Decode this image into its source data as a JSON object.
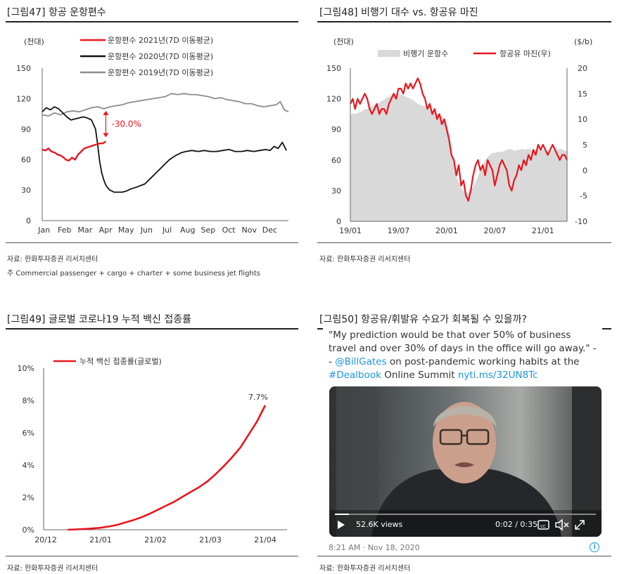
{
  "fig47": {
    "title": "[그림47]  항공  운항편수",
    "source": "자료:  한화투자증권   리서치센터",
    "note": "주 Commercial passenger + cargo + charter + some business jet flights",
    "annotation": "-30.0%"
  },
  "fig48": {
    "title": "[그림48]  비행기 대수 vs. 항공유 마진",
    "source": "자료:  한화투자증권   리서치센터"
  },
  "fig49": {
    "title": "[그림49]  글로벌 코로나19  누적 백신 접종률",
    "source": "자료:  한화투자증권   리서치센터",
    "end_label": "7.7%"
  },
  "fig50": {
    "title": "[그림50]  항공유/휘발유  수요가 회복될 수 있을까?",
    "source": "자료:  한화투자증권   리서치센터",
    "tweet_text_1": "\"My prediction would be that over 50% of business travel and over 30% of days in the office will go away.\" --",
    "tweet_handle": "@BillGates",
    "tweet_text_2": " on post-pandemic working habits at the ",
    "tweet_tag": "#Dealbook",
    "tweet_text_3": " Online Summit ",
    "tweet_url": "nyti.ms/32UN8Tc",
    "views": "52.6K views",
    "time": "0:02 / 0:35",
    "timestamp": "8:21 AM · Nov 18, 2020",
    "icons": [
      "play-icon",
      "captions-icon",
      "volume-icon",
      "fullscreen-icon",
      "info-icon"
    ]
  },
  "chart_data": [
    {
      "type": "line",
      "id": "fig47",
      "unit_label": "(천대)",
      "ylim": [
        0,
        150
      ],
      "yticks": [
        "0",
        "30",
        "60",
        "90",
        "120",
        "150"
      ],
      "categories": [
        "Jan",
        "Feb",
        "Mar",
        "Apr",
        "May",
        "Jun",
        "Jul",
        "Aug",
        "Sep",
        "Oct",
        "Nov",
        "Dec"
      ],
      "legend_position": "top",
      "series": [
        {
          "name": "운항편수 2021년(7D 이동평균)",
          "color": "#e8161e",
          "x": [
            0,
            0.15,
            0.3,
            0.45,
            0.6,
            0.75,
            0.9,
            1.05,
            1.15,
            1.3,
            1.45,
            1.6,
            1.75,
            1.9,
            2.05,
            2.2,
            2.35,
            2.5,
            2.65,
            2.8,
            2.95,
            3.1
          ],
          "y": [
            70,
            69,
            71,
            68,
            67,
            65,
            64,
            62,
            60,
            59,
            62,
            60,
            65,
            68,
            71,
            72,
            73,
            74,
            75,
            76,
            76,
            78
          ]
        },
        {
          "name": "운항편수 2020년(7D 이동평균)",
          "color": "#111111",
          "x": [
            0,
            0.2,
            0.4,
            0.6,
            0.8,
            1.0,
            1.2,
            1.4,
            1.6,
            1.8,
            2.0,
            2.2,
            2.4,
            2.6,
            2.7,
            2.8,
            2.9,
            3.0,
            3.1,
            3.2,
            3.3,
            3.5,
            3.7,
            3.9,
            4.1,
            4.3,
            4.6,
            5.0,
            5.3,
            5.6,
            5.9,
            6.2,
            6.5,
            6.8,
            7.0,
            7.3,
            7.6,
            7.9,
            8.2,
            8.5,
            8.8,
            9.1,
            9.4,
            9.7,
            10.0,
            10.3,
            10.6,
            10.9,
            11.1,
            11.3,
            11.5,
            11.7,
            11.9
          ],
          "y": [
            107,
            111,
            109,
            112,
            110,
            106,
            102,
            99,
            100,
            101,
            102,
            101,
            99,
            90,
            75,
            58,
            47,
            40,
            35,
            32,
            30,
            28,
            28,
            28,
            29,
            31,
            33,
            36,
            42,
            48,
            54,
            60,
            64,
            67,
            68,
            69,
            68,
            69,
            68,
            68,
            69,
            70,
            68,
            68,
            69,
            68,
            69,
            70,
            69,
            73,
            71,
            77,
            69
          ]
        },
        {
          "name": "운항편수 2019년(7D 이동평균)",
          "color": "#8c8c8c",
          "x": [
            0,
            0.3,
            0.6,
            0.9,
            1.2,
            1.5,
            1.8,
            2.1,
            2.4,
            2.7,
            3.0,
            3.3,
            3.6,
            3.9,
            4.2,
            4.5,
            4.8,
            5.1,
            5.4,
            5.7,
            6.0,
            6.3,
            6.6,
            6.9,
            7.2,
            7.5,
            7.8,
            8.1,
            8.4,
            8.7,
            9.0,
            9.3,
            9.6,
            9.9,
            10.2,
            10.5,
            10.8,
            11.1,
            11.4,
            11.6,
            11.8,
            12.0
          ],
          "y": [
            104,
            103,
            106,
            104,
            107,
            108,
            107,
            109,
            111,
            112,
            110,
            112,
            113,
            114,
            116,
            117,
            118,
            119,
            120,
            121,
            122,
            125,
            124,
            125,
            124,
            124,
            123,
            122,
            120,
            121,
            119,
            118,
            117,
            115,
            115,
            113,
            112,
            113,
            114,
            117,
            109,
            107
          ]
        }
      ],
      "annotations": [
        {
          "text": "-30.0%",
          "x": 3.1,
          "y_from": 108,
          "y_to": 82
        }
      ]
    },
    {
      "type": "area+line",
      "id": "fig48",
      "unit_label_left": "(천대)",
      "unit_label_right": "($/b)",
      "ylim_left": [
        0,
        150
      ],
      "ylim_right": [
        -10,
        20
      ],
      "yticks_left": [
        "0",
        "30",
        "60",
        "90",
        "120",
        "150"
      ],
      "yticks_right": [
        "-10",
        "-5",
        "0",
        "5",
        "10",
        "15",
        "20"
      ],
      "xticks": [
        "19/01",
        "19/07",
        "20/01",
        "20/07",
        "21/01"
      ],
      "legend_position": "top",
      "series": [
        {
          "name": "비행기 운항수",
          "axis": "left",
          "style": "area",
          "color": "#d9d9d9",
          "x": [
            0,
            0.3,
            0.6,
            0.9,
            1.2,
            1.5,
            1.8,
            2.1,
            2.4,
            2.7,
            3.0,
            3.3,
            3.6,
            3.9,
            4.2,
            4.5,
            4.8,
            5.1,
            5.4,
            5.7,
            6.0,
            6.3,
            6.6,
            6.9,
            7.2,
            7.5,
            7.8,
            8.1,
            8.4,
            8.7,
            9.0,
            9.3,
            9.6,
            9.9,
            10.2,
            10.5,
            10.8,
            11.1,
            11.4,
            11.7,
            12.0,
            12.3,
            12.6,
            12.9,
            13.2,
            13.5,
            13.8,
            14.1,
            14.4,
            14.7,
            15.0,
            15.3,
            15.6,
            15.9,
            16.2,
            16.5,
            16.8,
            17.1,
            17.4,
            17.7,
            18.0,
            18.3,
            18.6,
            18.9,
            19.2,
            19.5,
            19.8,
            20.2,
            20.5,
            20.8,
            21.1,
            21.4,
            21.7,
            22.0,
            22.3,
            22.6,
            22.9,
            23.2,
            23.5,
            23.8,
            24.1,
            24.4,
            24.7,
            25.0,
            25.3,
            25.6,
            25.9,
            26.2,
            26.5,
            26.8,
            27.0
          ],
          "y": [
            104,
            106,
            105,
            106,
            107,
            108,
            110,
            110,
            112,
            113,
            114,
            115,
            116,
            118,
            119,
            121,
            122,
            123,
            124,
            124,
            125,
            124,
            124,
            122,
            121,
            120,
            119,
            117,
            115,
            114,
            113,
            113,
            112,
            111,
            108,
            107,
            106,
            104,
            103,
            100,
            97,
            87,
            72,
            55,
            45,
            38,
            33,
            30,
            28,
            29,
            31,
            34,
            38,
            44,
            50,
            55,
            60,
            63,
            65,
            67,
            67,
            68,
            68,
            68,
            69,
            70,
            71,
            70,
            69,
            70,
            70,
            71,
            70,
            71,
            71,
            70,
            70,
            70,
            70,
            71,
            70,
            69,
            68,
            69,
            70,
            72,
            70,
            71,
            70,
            69,
            68
          ]
        },
        {
          "name": "항공유 마진(우)",
          "axis": "right",
          "style": "line",
          "color": "#e8161e",
          "x": [
            0,
            0.3,
            0.6,
            0.9,
            1.2,
            1.5,
            1.8,
            2.1,
            2.4,
            2.7,
            3.0,
            3.3,
            3.6,
            3.9,
            4.2,
            4.5,
            4.8,
            5.1,
            5.4,
            5.7,
            6.0,
            6.3,
            6.6,
            6.9,
            7.2,
            7.5,
            7.8,
            8.1,
            8.4,
            8.7,
            9.0,
            9.3,
            9.6,
            9.9,
            10.2,
            10.5,
            10.8,
            11.1,
            11.4,
            11.7,
            12.0,
            12.3,
            12.6,
            12.9,
            13.2,
            13.5,
            13.8,
            14.1,
            14.4,
            14.7,
            15.0,
            15.3,
            15.6,
            15.9,
            16.2,
            16.5,
            16.8,
            17.1,
            17.4,
            17.7,
            18.0,
            18.3,
            18.6,
            18.9,
            19.2,
            19.5,
            19.8,
            20.1,
            20.4,
            20.7,
            21.0,
            21.3,
            21.6,
            21.9,
            22.2,
            22.5,
            22.8,
            23.1,
            23.4,
            23.7,
            24.0,
            24.3,
            24.6,
            24.9,
            25.2,
            25.5,
            25.8,
            26.1,
            26.4,
            26.7,
            27.0
          ],
          "y": [
            13,
            14,
            12,
            14,
            13,
            14,
            15,
            14,
            12,
            11,
            12,
            13,
            11,
            12,
            12,
            11,
            13,
            14,
            15,
            14,
            16,
            16,
            15,
            17,
            16,
            17,
            16,
            17,
            18,
            17,
            15,
            14,
            12,
            13,
            11,
            12,
            10,
            11,
            9,
            10,
            8,
            6,
            3,
            2,
            -1,
            1,
            -3,
            -2,
            -5,
            -6,
            -4,
            -1,
            1,
            2,
            0,
            1,
            -1,
            2,
            1,
            0,
            -3,
            -1,
            1,
            2,
            1,
            0,
            -3,
            -4,
            -2,
            -1,
            1,
            0,
            2,
            1,
            3,
            2,
            4,
            3,
            5,
            4,
            5,
            4,
            3,
            4,
            5,
            4,
            3,
            2,
            3,
            3,
            2
          ]
        }
      ]
    },
    {
      "type": "line",
      "id": "fig49",
      "ylim": [
        0,
        10
      ],
      "yticks": [
        "0%",
        "2%",
        "4%",
        "6%",
        "8%",
        "10%"
      ],
      "xticks": [
        "20/12",
        "21/01",
        "21/02",
        "21/03",
        "21/04"
      ],
      "legend_position": "top-left",
      "series": [
        {
          "name": "누적 백신 접종률(글로벌)",
          "color": "#e8161e",
          "x": [
            0.4,
            0.55,
            0.7,
            0.85,
            1.0,
            1.15,
            1.3,
            1.45,
            1.6,
            1.75,
            1.9,
            2.05,
            2.2,
            2.35,
            2.5,
            2.65,
            2.8,
            2.95,
            3.1,
            3.25,
            3.4,
            3.55,
            3.7,
            3.85,
            4.0
          ],
          "y": [
            0.0,
            0.02,
            0.05,
            0.08,
            0.12,
            0.2,
            0.3,
            0.45,
            0.6,
            0.78,
            1.0,
            1.25,
            1.5,
            1.75,
            2.05,
            2.35,
            2.65,
            3.0,
            3.45,
            3.95,
            4.5,
            5.1,
            5.9,
            6.7,
            7.7
          ]
        }
      ],
      "data_labels": [
        {
          "text": "7.7%",
          "x": 4.0,
          "y": 7.7
        }
      ]
    }
  ]
}
